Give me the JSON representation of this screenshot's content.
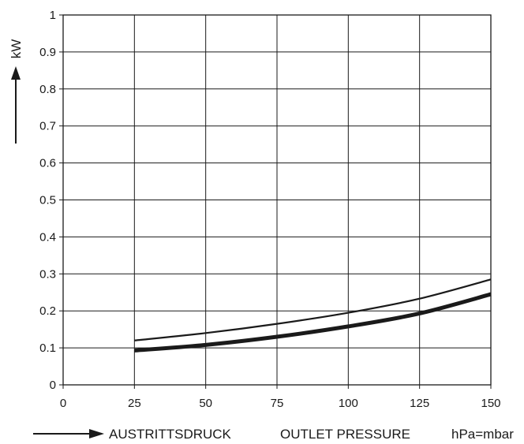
{
  "chart_data": {
    "type": "line",
    "xlabel_de": "AUSTRITTSDRUCK",
    "xlabel_en": "OUTLET PRESSURE",
    "xunit": "hPa=mbar",
    "ylabel": "kW",
    "xlim": [
      0,
      150
    ],
    "ylim": [
      0,
      1
    ],
    "grid": true,
    "x_ticks": [
      "0",
      "25",
      "50",
      "75",
      "100",
      "125",
      "150"
    ],
    "y_ticks": [
      "0",
      "0.1",
      "0.2",
      "0.3",
      "0.4",
      "0.5",
      "0.6",
      "0.7",
      "0.8",
      "0.9",
      "1"
    ],
    "series": [
      {
        "style": "thin",
        "x": [
          25,
          50,
          75,
          100,
          125,
          150
        ],
        "y": [
          0.12,
          0.14,
          0.165,
          0.195,
          0.233,
          0.285
        ]
      },
      {
        "style": "thick",
        "x": [
          25,
          50,
          75,
          100,
          125,
          150
        ],
        "y": [
          0.093,
          0.108,
          0.13,
          0.158,
          0.193,
          0.245
        ]
      }
    ],
    "colors": {
      "line": "#1a1a1a",
      "background": "#ffffff"
    }
  }
}
